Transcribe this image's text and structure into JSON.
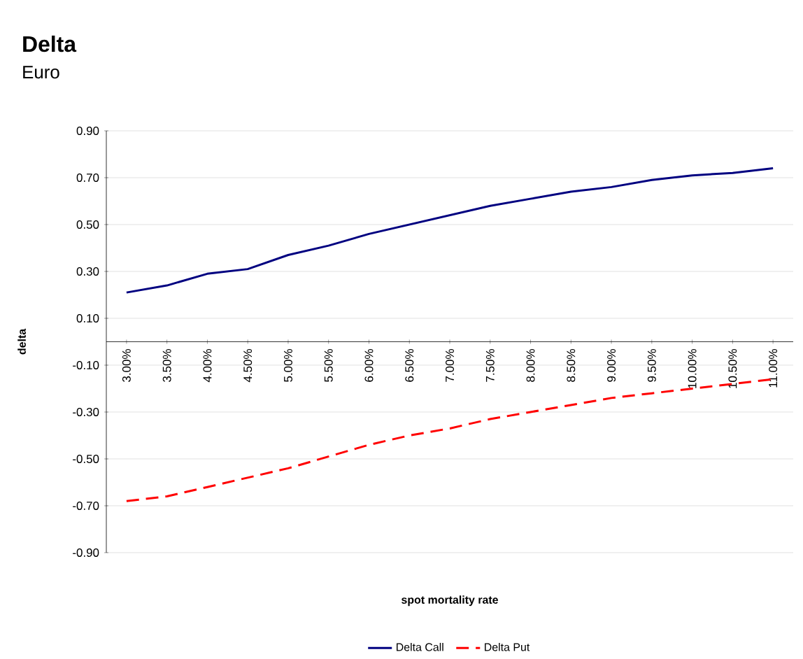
{
  "chart_data": {
    "type": "line",
    "title": "Delta",
    "subtitle": "Euro",
    "xlabel": "spot mortality rate",
    "ylabel": "delta",
    "categories": [
      "3.00%",
      "3.50%",
      "4.00%",
      "4.50%",
      "5.00%",
      "5.50%",
      "6.00%",
      "6.50%",
      "7.00%",
      "7.50%",
      "8.00%",
      "8.50%",
      "9.00%",
      "9.50%",
      "10.00%",
      "10.50%",
      "11.00%"
    ],
    "series": [
      {
        "name": "Delta Call",
        "color": "#000080",
        "line_style": "solid",
        "values": [
          0.21,
          0.24,
          0.29,
          0.31,
          0.37,
          0.41,
          0.46,
          0.5,
          0.54,
          0.58,
          0.61,
          0.64,
          0.66,
          0.69,
          0.71,
          0.72,
          0.74
        ]
      },
      {
        "name": "Delta Put",
        "color": "#ff0000",
        "line_style": "dashed",
        "values": [
          -0.68,
          -0.66,
          -0.62,
          -0.58,
          -0.54,
          -0.49,
          -0.44,
          -0.4,
          -0.37,
          -0.33,
          -0.3,
          -0.27,
          -0.24,
          -0.22,
          -0.2,
          -0.18,
          -0.16
        ]
      }
    ],
    "ylim": [
      -0.9,
      0.9
    ],
    "yticks": [
      {
        "value": 0.9,
        "label": "0.90"
      },
      {
        "value": 0.7,
        "label": "0.70"
      },
      {
        "value": 0.5,
        "label": "0.50"
      },
      {
        "value": 0.3,
        "label": "0.30"
      },
      {
        "value": 0.1,
        "label": "0.10"
      },
      {
        "value": -0.1,
        "label": "-0.10"
      },
      {
        "value": -0.3,
        "label": "-0.30"
      },
      {
        "value": -0.5,
        "label": "-0.50"
      },
      {
        "value": -0.7,
        "label": "-0.70"
      },
      {
        "value": -0.9,
        "label": "-0.90"
      }
    ],
    "grid": "y",
    "legend": "bottom",
    "marker": "none"
  }
}
